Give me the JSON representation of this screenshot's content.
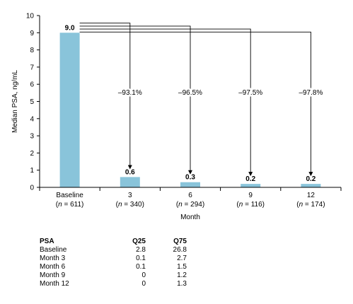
{
  "chart_data": {
    "type": "bar",
    "ylabel": "Median PSA, ng/mL",
    "xlabel": "Month",
    "ylim": [
      0,
      10
    ],
    "yticks": [
      0,
      1,
      2,
      3,
      4,
      5,
      6,
      7,
      8,
      9,
      10
    ],
    "categories": [
      "Baseline",
      "3",
      "6",
      "9",
      "12"
    ],
    "n_labels": [
      "611",
      "340",
      "294",
      "116",
      "174"
    ],
    "values": [
      9.0,
      0.6,
      0.3,
      0.2,
      0.2
    ],
    "value_labels": [
      "9.0",
      "0.6",
      "0.3",
      "0.2",
      "0.2"
    ],
    "reductions": [
      "–93.1%",
      "–96.5%",
      "–97.5%",
      "–97.8%"
    ],
    "bar_color": "#89c4da",
    "grid": false
  },
  "table": {
    "headers": [
      "PSA",
      "Q25",
      "Q75"
    ],
    "rows": [
      [
        "Baseline",
        "2.8",
        "26.8"
      ],
      [
        "Month 3",
        "0.1",
        "2.7"
      ],
      [
        "Month 6",
        "0.1",
        "1.5"
      ],
      [
        "Month 9",
        "0",
        "1.2"
      ],
      [
        "Month 12",
        "0",
        "1.3"
      ]
    ]
  }
}
